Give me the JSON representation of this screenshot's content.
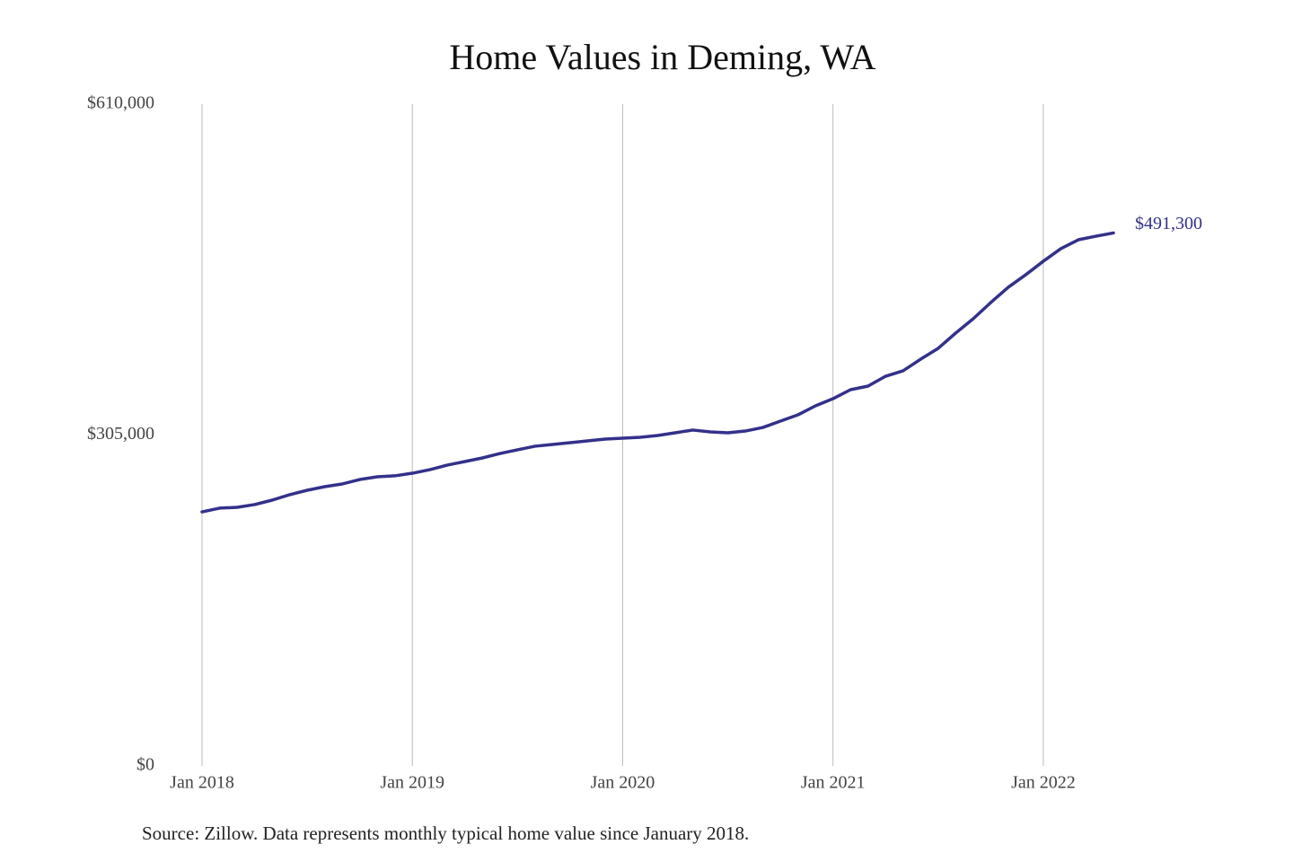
{
  "chart_data": {
    "type": "line",
    "title": "Home Values in Deming, WA",
    "source": "Source: Zillow. Data represents monthly typical home value since January 2018.",
    "x": [
      "2018-01",
      "2018-02",
      "2018-03",
      "2018-04",
      "2018-05",
      "2018-06",
      "2018-07",
      "2018-08",
      "2018-09",
      "2018-10",
      "2018-11",
      "2018-12",
      "2019-01",
      "2019-02",
      "2019-03",
      "2019-04",
      "2019-05",
      "2019-06",
      "2019-07",
      "2019-08",
      "2019-09",
      "2019-10",
      "2019-11",
      "2019-12",
      "2020-01",
      "2020-02",
      "2020-03",
      "2020-04",
      "2020-05",
      "2020-06",
      "2020-07",
      "2020-08",
      "2020-09",
      "2020-10",
      "2020-11",
      "2020-12",
      "2021-01",
      "2021-02",
      "2021-03",
      "2021-04",
      "2021-05",
      "2021-06",
      "2021-07",
      "2021-08",
      "2021-09",
      "2021-10",
      "2021-11",
      "2021-12",
      "2022-01",
      "2022-02",
      "2022-03",
      "2022-04",
      "2022-05"
    ],
    "series": [
      {
        "name": "Typical home value",
        "color": "#33318a",
        "values": [
          234200,
          237600,
          238400,
          240900,
          245000,
          250000,
          254100,
          257400,
          259900,
          264000,
          266500,
          267400,
          269800,
          273100,
          277300,
          280600,
          283900,
          288000,
          291400,
          294700,
          296300,
          298000,
          299600,
          301300,
          302100,
          302900,
          304600,
          307100,
          309600,
          307900,
          307100,
          308700,
          312000,
          317800,
          323600,
          331900,
          338500,
          346800,
          350100,
          359200,
          364200,
          374900,
          384900,
          399000,
          412200,
          427100,
          441200,
          452800,
          465200,
          476800,
          485000,
          488300,
          491300
        ],
        "value_labels": [
          null,
          null,
          null,
          null,
          null,
          null,
          null,
          null,
          null,
          null,
          null,
          null,
          null,
          null,
          null,
          null,
          null,
          null,
          null,
          null,
          null,
          null,
          null,
          null,
          null,
          null,
          null,
          null,
          null,
          null,
          null,
          null,
          null,
          null,
          null,
          null,
          null,
          null,
          null,
          null,
          null,
          null,
          null,
          null,
          null,
          null,
          null,
          null,
          null,
          null,
          null,
          null,
          "$491,300"
        ]
      }
    ],
    "xlim": [
      "2018-01",
      "2022-05"
    ],
    "xticks": [
      {
        "value": "2018-01",
        "label": "Jan 2018"
      },
      {
        "value": "2019-01",
        "label": "Jan 2019"
      },
      {
        "value": "2020-01",
        "label": "Jan 2020"
      },
      {
        "value": "2021-01",
        "label": "Jan 2021"
      },
      {
        "value": "2022-01",
        "label": "Jan 2022"
      }
    ],
    "ylim": [
      0,
      610000
    ],
    "yticks": [
      {
        "value": 0,
        "label": "$0"
      },
      {
        "value": 305000,
        "label": "$305,000"
      },
      {
        "value": 610000,
        "label": "$610,000"
      }
    ],
    "grid": "x"
  }
}
